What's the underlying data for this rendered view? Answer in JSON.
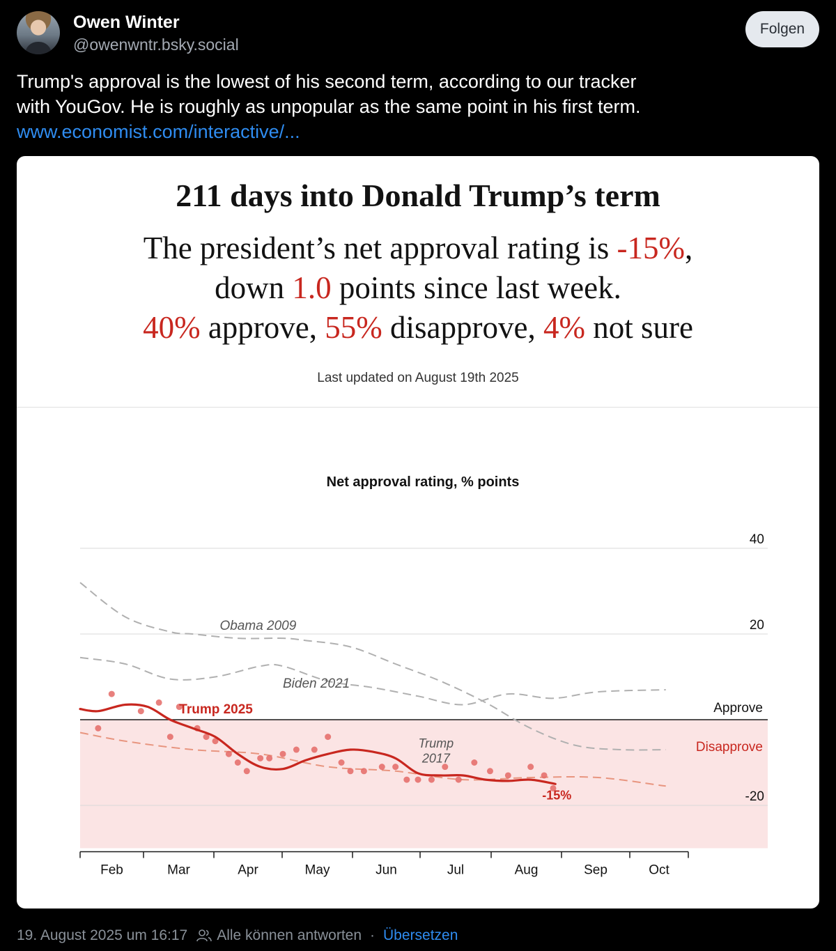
{
  "post": {
    "author_name": "Owen Winter",
    "author_handle": "@owenwntr.bsky.social",
    "follow_label": "Folgen",
    "text_line1": "Trump's approval is the lowest of his second term, according to our tracker",
    "text_line2": "with YouGov. He is roughly as unpopular as the same point in his first term.",
    "link_text": "www.economist.com/interactive/...",
    "timestamp": "19. August 2025 um 16:17",
    "reply_setting": "Alle können antworten",
    "translate_label": "Übersetzen",
    "separator": "·"
  },
  "embed": {
    "headline": "211 days into Donald Trump’s term",
    "summary": {
      "line1_pre": "The president’s net approval rating is ",
      "line1_value": "-15%",
      "line1_post": ",",
      "line2_pre": "down ",
      "line2_value": "1.0",
      "line2_post": " points since last week.",
      "approve_value": "40%",
      "approve_label": " approve, ",
      "disapprove_value": "55%",
      "disapprove_label": " disapprove, ",
      "notsure_value": "4%",
      "notsure_label": " not sure"
    },
    "last_updated": "Last updated on August 19th 2025"
  },
  "chart_data": {
    "type": "line",
    "title": "Net approval rating, % points",
    "xlabel": "",
    "ylabel": "",
    "x_tick_labels": [
      "Feb",
      "Mar",
      "Apr",
      "May",
      "Jun",
      "Jul",
      "Aug",
      "Sep",
      "Oct"
    ],
    "x_axis_unit": "days into term",
    "x_range": [
      0,
      270
    ],
    "ylim": [
      -30,
      42
    ],
    "y_ticks": [
      40,
      20,
      -20
    ],
    "zero_line_labels": {
      "above": "Approve",
      "below": "Disapprove"
    },
    "current_value_label": "-15%",
    "colors": {
      "trump2025": "#c8271f",
      "trump2017": "#e8957f",
      "comparison": "#b0b0b0",
      "disapprove_fill": "#fbe4e4"
    },
    "series": [
      {
        "name": "Trump 2025",
        "style": "solid",
        "x": [
          0,
          8,
          20,
          30,
          40,
          50,
          60,
          70,
          80,
          90,
          100,
          110,
          120,
          130,
          140,
          150,
          160,
          170,
          180,
          190,
          200,
          211
        ],
        "y": [
          2.5,
          2,
          3.5,
          3,
          0,
          -2,
          -4,
          -8,
          -11,
          -11.5,
          -9.5,
          -8,
          -7,
          -7.5,
          -9,
          -12.5,
          -13,
          -13,
          -14,
          -14.3,
          -14,
          -15
        ]
      },
      {
        "name": "Trump 2017",
        "style": "dashed",
        "x": [
          0,
          20,
          50,
          80,
          110,
          140,
          170,
          200,
          230,
          260
        ],
        "y": [
          -3,
          -5,
          -7,
          -8,
          -11,
          -12,
          -14,
          -13.5,
          -13.5,
          -15.5
        ]
      },
      {
        "name": "Obama 2009",
        "style": "dashed",
        "x": [
          0,
          20,
          40,
          50,
          70,
          90,
          100,
          120,
          140,
          160,
          180,
          200,
          220,
          240,
          260
        ],
        "y": [
          32,
          24,
          20.5,
          20,
          19,
          19,
          18.5,
          17,
          13,
          9,
          4,
          -2,
          -6,
          -7,
          -7
        ]
      },
      {
        "name": "Biden 2021",
        "style": "dashed",
        "x": [
          0,
          20,
          40,
          60,
          80,
          90,
          110,
          130,
          150,
          170,
          190,
          210,
          230,
          260
        ],
        "y": [
          14.5,
          13,
          9.5,
          10,
          12.5,
          12.5,
          9,
          7.5,
          5.5,
          3.5,
          6,
          5,
          6.5,
          7
        ]
      },
      {
        "name": "Trump 2025 polls",
        "style": "points",
        "x": [
          8,
          14,
          27,
          35,
          40,
          44,
          52,
          56,
          60,
          66,
          70,
          74,
          80,
          84,
          90,
          96,
          104,
          110,
          116,
          120,
          126,
          134,
          140,
          145,
          150,
          156,
          162,
          168,
          175,
          182,
          190,
          200,
          206,
          210
        ],
        "y": [
          -2,
          6,
          2,
          4,
          -4,
          3,
          -2,
          -4,
          -5,
          -8,
          -10,
          -12,
          -9,
          -9,
          -8,
          -7,
          -7,
          -4,
          -10,
          -12,
          -12,
          -11,
          -11,
          -14,
          -14,
          -14,
          -11,
          -14,
          -10,
          -12,
          -13,
          -11,
          -13,
          -16
        ]
      }
    ],
    "annotations": [
      {
        "text": "Obama 2009",
        "x": 62,
        "y": 21
      },
      {
        "text": "Biden 2021",
        "x": 90,
        "y": 7.5
      },
      {
        "text": "Trump 2025",
        "x": 44,
        "y": 1.5
      },
      {
        "text": "Trump",
        "x": 158,
        "y": -6.5
      },
      {
        "text": "2017",
        "x": 158,
        "y": -10
      }
    ]
  }
}
